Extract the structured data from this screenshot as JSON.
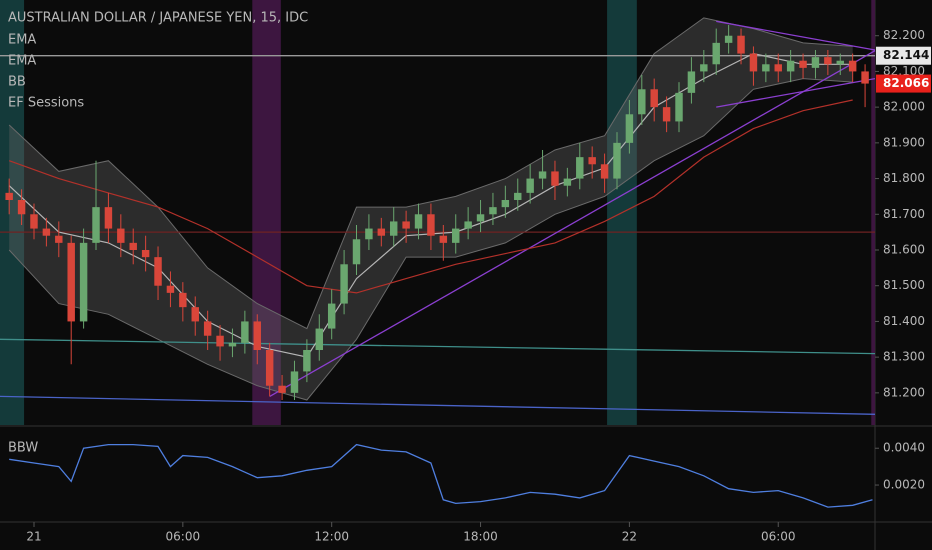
{
  "chart_data": [
    {
      "type": "candlestick",
      "title": "AUSTRALIAN DOLLAR / JAPANESE YEN, 15, IDC",
      "xlim": [
        -1.37,
        33.9
      ],
      "ylim": [
        81.11,
        82.3
      ],
      "yticks": [
        {
          "value": 81.2,
          "label": "81.200"
        },
        {
          "value": 81.3,
          "label": "81.300"
        },
        {
          "value": 81.4,
          "label": "81.400"
        },
        {
          "value": 81.5,
          "label": "81.500"
        },
        {
          "value": 81.6,
          "label": "81.600"
        },
        {
          "value": 81.7,
          "label": "81.700"
        },
        {
          "value": 81.8,
          "label": "81.800"
        },
        {
          "value": 81.9,
          "label": "81.900"
        },
        {
          "value": 82.0,
          "label": "82.000"
        },
        {
          "value": 82.1,
          "label": "82.100"
        },
        {
          "value": 82.2,
          "label": "82.200"
        }
      ],
      "up_color": "#6aa76f",
      "down_color": "#d9463a",
      "x": [
        -1,
        -0.5,
        0,
        0.5,
        1,
        1.5,
        2,
        2.5,
        3,
        3.5,
        4,
        4.5,
        5,
        5.5,
        6,
        6.5,
        7,
        7.5,
        8,
        8.5,
        9,
        9.5,
        10,
        10.5,
        11,
        11.5,
        12,
        12.5,
        13,
        13.5,
        14,
        14.5,
        15,
        15.5,
        16,
        16.5,
        17,
        17.5,
        18,
        18.5,
        19,
        19.5,
        20,
        20.5,
        21,
        21.5,
        22,
        22.5,
        23,
        23.5,
        24,
        24.5,
        25,
        25.5,
        26,
        26.5,
        27,
        27.5,
        28,
        28.5,
        29,
        29.5,
        30,
        30.5,
        31,
        31.5,
        32,
        32.5,
        33,
        33.5
      ],
      "open": [
        81.76,
        81.74,
        81.7,
        81.66,
        81.64,
        81.62,
        81.4,
        81.62,
        81.72,
        81.66,
        81.62,
        81.6,
        81.58,
        81.5,
        81.48,
        81.44,
        81.4,
        81.36,
        81.33,
        81.34,
        81.4,
        81.32,
        81.22,
        81.2,
        81.26,
        81.32,
        81.38,
        81.45,
        81.56,
        81.63,
        81.66,
        81.64,
        81.68,
        81.66,
        81.7,
        81.64,
        81.62,
        81.66,
        81.68,
        81.7,
        81.72,
        81.74,
        81.76,
        81.8,
        81.82,
        81.78,
        81.8,
        81.86,
        81.84,
        81.8,
        81.9,
        81.98,
        82.05,
        82.0,
        81.96,
        82.04,
        82.1,
        82.12,
        82.18,
        82.2,
        82.15,
        82.1,
        82.12,
        82.1,
        82.13,
        82.11,
        82.14,
        82.12,
        82.13,
        82.1
      ],
      "high": [
        81.8,
        81.77,
        81.73,
        81.69,
        81.68,
        81.64,
        81.66,
        81.85,
        81.76,
        81.7,
        81.66,
        81.64,
        81.61,
        81.54,
        81.51,
        81.47,
        81.43,
        81.39,
        81.38,
        81.43,
        81.42,
        81.34,
        81.25,
        81.29,
        81.35,
        81.42,
        81.49,
        81.6,
        81.67,
        81.7,
        81.69,
        81.72,
        81.71,
        81.73,
        81.73,
        81.67,
        81.7,
        81.72,
        81.74,
        81.76,
        81.78,
        81.8,
        81.84,
        81.88,
        81.85,
        81.83,
        81.9,
        81.89,
        81.87,
        81.93,
        82.02,
        82.09,
        82.08,
        82.03,
        82.07,
        82.14,
        82.16,
        82.22,
        82.23,
        82.22,
        82.17,
        82.15,
        82.15,
        82.16,
        82.15,
        82.16,
        82.16,
        82.15,
        82.15,
        82.12
      ],
      "low": [
        81.7,
        81.67,
        81.63,
        81.61,
        81.58,
        81.28,
        81.38,
        81.6,
        81.62,
        81.58,
        81.56,
        81.54,
        81.46,
        81.44,
        81.4,
        81.36,
        81.32,
        81.29,
        81.3,
        81.31,
        81.28,
        81.19,
        81.18,
        81.18,
        81.23,
        81.29,
        81.35,
        81.42,
        81.53,
        81.6,
        81.61,
        81.61,
        81.62,
        81.63,
        81.6,
        81.57,
        81.59,
        81.63,
        81.65,
        81.67,
        81.69,
        81.71,
        81.73,
        81.77,
        81.74,
        81.75,
        81.77,
        81.8,
        81.76,
        81.77,
        81.87,
        81.95,
        81.96,
        81.93,
        81.93,
        82.01,
        82.07,
        82.09,
        82.15,
        82.12,
        82.06,
        82.07,
        82.07,
        82.07,
        82.08,
        82.08,
        82.09,
        82.09,
        82.07,
        82.0
      ],
      "close": [
        81.74,
        81.7,
        81.66,
        81.64,
        81.62,
        81.4,
        81.62,
        81.72,
        81.66,
        81.62,
        81.6,
        81.58,
        81.5,
        81.48,
        81.44,
        81.4,
        81.36,
        81.33,
        81.34,
        81.4,
        81.32,
        81.22,
        81.2,
        81.26,
        81.32,
        81.38,
        81.45,
        81.56,
        81.63,
        81.66,
        81.64,
        81.68,
        81.66,
        81.7,
        81.64,
        81.62,
        81.66,
        81.68,
        81.7,
        81.72,
        81.74,
        81.76,
        81.8,
        81.82,
        81.78,
        81.8,
        81.86,
        81.84,
        81.8,
        81.9,
        81.98,
        82.05,
        82.0,
        81.96,
        82.04,
        82.1,
        82.12,
        82.18,
        82.2,
        82.15,
        82.1,
        82.12,
        82.1,
        82.13,
        82.11,
        82.14,
        82.12,
        82.13,
        82.1,
        82.066
      ],
      "series": [
        {
          "name": "EMA",
          "color": "#b5b5b5",
          "x": [
            -1,
            1,
            3,
            5,
            7,
            9,
            11,
            13,
            15,
            17,
            19,
            21,
            23,
            25,
            27,
            29,
            31,
            33
          ],
          "values": [
            81.78,
            81.65,
            81.62,
            81.55,
            81.4,
            81.33,
            81.3,
            81.52,
            81.64,
            81.65,
            81.7,
            81.78,
            81.83,
            82.0,
            82.08,
            82.15,
            82.12,
            82.12
          ]
        },
        {
          "name": "EMA",
          "color": "#b3312a",
          "x": [
            -1,
            1,
            3,
            5,
            7,
            9,
            11,
            13,
            15,
            17,
            19,
            21,
            23,
            25,
            27,
            29,
            31,
            33
          ],
          "values": [
            81.85,
            81.8,
            81.76,
            81.72,
            81.66,
            81.58,
            81.5,
            81.48,
            81.52,
            81.56,
            81.59,
            81.62,
            81.68,
            81.75,
            81.86,
            81.94,
            81.99,
            82.02
          ]
        }
      ],
      "bands": {
        "name": "BB",
        "color": "#6a6a6a",
        "x": [
          -1,
          1,
          3,
          5,
          7,
          9,
          11,
          13,
          15,
          17,
          19,
          21,
          23,
          25,
          27,
          29,
          31,
          33
        ],
        "upper": [
          81.95,
          81.82,
          81.85,
          81.72,
          81.55,
          81.45,
          81.38,
          81.72,
          81.72,
          81.75,
          81.8,
          81.88,
          81.92,
          82.15,
          82.25,
          82.22,
          82.18,
          82.17
        ],
        "lower": [
          81.6,
          81.45,
          81.42,
          81.35,
          81.28,
          81.22,
          81.18,
          81.35,
          81.58,
          81.58,
          81.62,
          81.7,
          81.75,
          81.85,
          81.92,
          82.05,
          82.08,
          82.07
        ]
      },
      "sessions": {
        "name": "EF Sessions",
        "ranges": [
          {
            "x": [
              -1.37,
              -0.4
            ],
            "color": "#143a3a"
          },
          {
            "x": [
              8.8,
              9.95
            ],
            "color": "#3d1640"
          },
          {
            "x": [
              23.1,
              24.3
            ],
            "color": "#143a3a"
          },
          {
            "x": [
              33.75,
              33.9
            ],
            "color": "#3d1640"
          }
        ]
      },
      "lines": [
        {
          "x": [
            -1.37,
            33.9
          ],
          "y": [
            81.35,
            81.31
          ],
          "color": "#3f8f8a"
        },
        {
          "x": [
            -1.37,
            33.9
          ],
          "y": [
            81.19,
            81.14
          ],
          "color": "#4a63c8"
        },
        {
          "x": [
            -1.37,
            33.9
          ],
          "y": [
            81.65,
            81.65
          ],
          "color": "#6e2222"
        },
        {
          "x": [
            -1.37,
            33.9
          ],
          "y": [
            82.144,
            82.144
          ],
          "color": "#9a9a9a"
        },
        {
          "x": [
            9.5,
            33.9
          ],
          "y": [
            81.19,
            82.158
          ],
          "color": "#8b3fd0"
        },
        {
          "x": [
            27.5,
            33.9
          ],
          "y": [
            82.0,
            82.08
          ],
          "color": "#8b3fd0"
        },
        {
          "x": [
            27.5,
            33.9
          ],
          "y": [
            82.24,
            82.16
          ],
          "color": "#8b3fd0"
        }
      ],
      "price_tags": [
        {
          "value": 82.144,
          "label": "82.144",
          "color": "#e8e8e8",
          "text_color": "#111111"
        },
        {
          "value": 82.066,
          "label": "82.066",
          "color": "#e8211b",
          "text_color": "#ffffff"
        }
      ]
    },
    {
      "type": "line",
      "title": "BBW",
      "xlim": [
        -1.37,
        33.9
      ],
      "ylim": [
        0.0001,
        0.0051
      ],
      "yticks": [
        {
          "value": 0.002,
          "label": "0.0020"
        },
        {
          "value": 0.004,
          "label": "0.0040"
        }
      ],
      "xticks": [
        {
          "value": 0,
          "label": "21"
        },
        {
          "value": 6,
          "label": "06:00"
        },
        {
          "value": 12,
          "label": "12:00"
        },
        {
          "value": 18,
          "label": "18:00"
        },
        {
          "value": 24,
          "label": "22"
        },
        {
          "value": 30,
          "label": "06:00"
        }
      ],
      "color": "#4f7fe0",
      "x": [
        -1,
        0,
        1,
        1.5,
        2,
        3,
        4,
        5,
        5.5,
        6,
        7,
        8,
        8.5,
        9,
        10,
        11,
        12,
        12.5,
        13,
        14,
        15,
        16,
        16.5,
        17,
        18,
        19,
        20,
        21,
        22,
        23,
        24,
        25,
        26,
        27,
        28,
        29,
        30,
        31,
        32,
        33,
        33.8
      ],
      "values": [
        0.0034,
        0.0032,
        0.003,
        0.0022,
        0.004,
        0.0042,
        0.0042,
        0.0041,
        0.003,
        0.0036,
        0.0035,
        0.003,
        0.0027,
        0.0024,
        0.0025,
        0.0028,
        0.003,
        0.0036,
        0.0042,
        0.0039,
        0.0038,
        0.0032,
        0.0012,
        0.001,
        0.0011,
        0.0013,
        0.0016,
        0.0015,
        0.0013,
        0.0017,
        0.0036,
        0.0033,
        0.003,
        0.0025,
        0.0018,
        0.0016,
        0.0017,
        0.0013,
        0.0008,
        0.0009,
        0.0012
      ]
    }
  ]
}
